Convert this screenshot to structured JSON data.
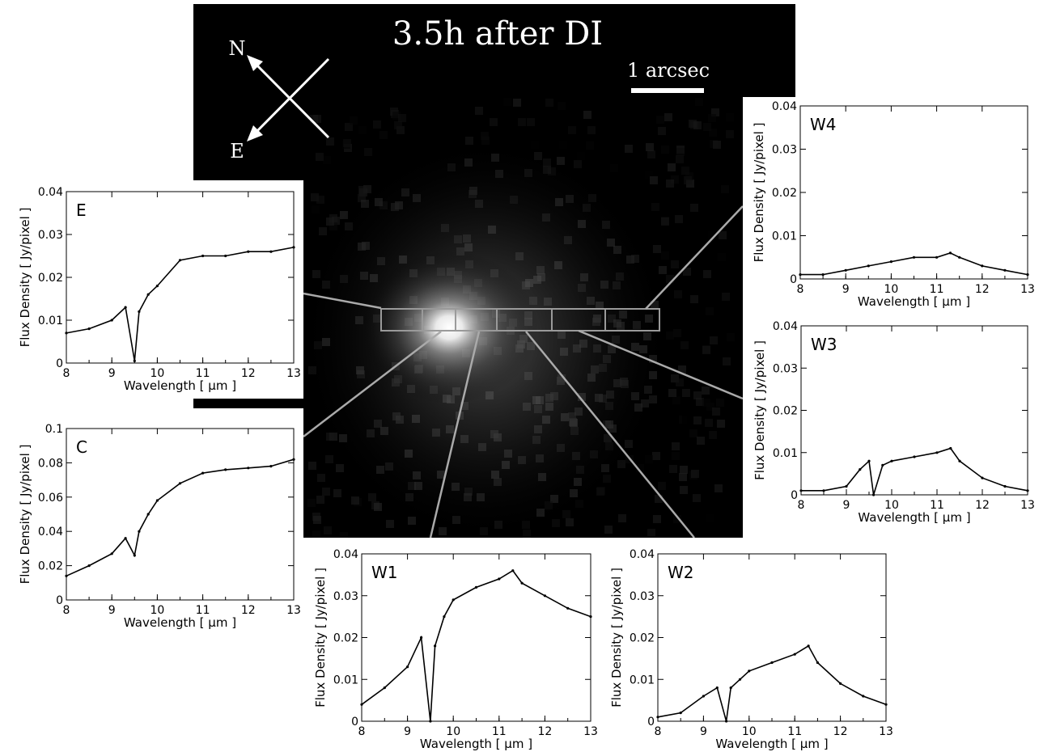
{
  "image": {
    "title": "3.5h after DI",
    "compass": {
      "north": "N",
      "east": "E"
    },
    "scale_bar": "1 arcsec",
    "slit_apertures": [
      "E",
      "C",
      "W1",
      "W2",
      "W3",
      "W4"
    ]
  },
  "common_axes": {
    "xlabel": "Wavelength  [ μm ]",
    "ylabel": "Flux Density  [ Jy/pixel ]"
  },
  "chart_data": [
    {
      "type": "line",
      "panel": "E",
      "xlabel": "Wavelength  [ μm ]",
      "ylabel": "Flux Density  [ Jy/pixel ]",
      "xlim": [
        8,
        13
      ],
      "ylim": [
        0,
        0.04
      ],
      "xticks": [
        "8",
        "9",
        "10",
        "11",
        "12",
        "13"
      ],
      "yticks": [
        "0",
        "0.01",
        "0.02",
        "0.03",
        "0.04"
      ],
      "x": [
        8.0,
        8.5,
        9.0,
        9.3,
        9.5,
        9.6,
        9.8,
        10.0,
        10.5,
        11.0,
        11.5,
        12.0,
        12.5,
        13.0
      ],
      "y": [
        0.007,
        0.008,
        0.01,
        0.013,
        0.0005,
        0.012,
        0.016,
        0.018,
        0.024,
        0.025,
        0.025,
        0.026,
        0.026,
        0.027
      ]
    },
    {
      "type": "line",
      "panel": "C",
      "xlabel": "Wavelength  [ μm ]",
      "ylabel": "Flux Density  [ Jy/pixel ]",
      "xlim": [
        8,
        13
      ],
      "ylim": [
        0,
        0.1
      ],
      "xticks": [
        "8",
        "9",
        "10",
        "11",
        "12",
        "13"
      ],
      "yticks": [
        "0",
        "0.02",
        "0.04",
        "0.06",
        "0.08",
        "0.1"
      ],
      "x": [
        8.0,
        8.5,
        9.0,
        9.3,
        9.5,
        9.6,
        9.8,
        10.0,
        10.5,
        11.0,
        11.5,
        12.0,
        12.5,
        13.0
      ],
      "y": [
        0.014,
        0.02,
        0.027,
        0.036,
        0.026,
        0.04,
        0.05,
        0.058,
        0.068,
        0.074,
        0.076,
        0.077,
        0.078,
        0.082
      ]
    },
    {
      "type": "line",
      "panel": "W1",
      "xlabel": "Wavelength  [ μm ]",
      "ylabel": "Flux Density  [ Jy/pixel ]",
      "xlim": [
        8,
        13
      ],
      "ylim": [
        0,
        0.04
      ],
      "xticks": [
        "8",
        "9",
        "10",
        "11",
        "12",
        "13"
      ],
      "yticks": [
        "0",
        "0.01",
        "0.02",
        "0.03",
        "0.04"
      ],
      "x": [
        8.0,
        8.5,
        9.0,
        9.3,
        9.5,
        9.6,
        9.8,
        10.0,
        10.5,
        11.0,
        11.3,
        11.5,
        12.0,
        12.5,
        13.0
      ],
      "y": [
        0.004,
        0.008,
        0.013,
        0.02,
        0.0,
        0.018,
        0.025,
        0.029,
        0.032,
        0.034,
        0.036,
        0.033,
        0.03,
        0.027,
        0.025
      ]
    },
    {
      "type": "line",
      "panel": "W2",
      "xlabel": "Wavelength  [ μm ]",
      "ylabel": "Flux Density  [ Jy/pixel ]",
      "xlim": [
        8,
        13
      ],
      "ylim": [
        0,
        0.04
      ],
      "xticks": [
        "8",
        "9",
        "10",
        "11",
        "12",
        "13"
      ],
      "yticks": [
        "0",
        "0.01",
        "0.02",
        "0.03",
        "0.04"
      ],
      "x": [
        8.0,
        8.5,
        9.0,
        9.3,
        9.5,
        9.6,
        9.8,
        10.0,
        10.5,
        11.0,
        11.3,
        11.5,
        12.0,
        12.5,
        13.0
      ],
      "y": [
        0.001,
        0.002,
        0.006,
        0.008,
        0.0,
        0.008,
        0.01,
        0.012,
        0.014,
        0.016,
        0.018,
        0.014,
        0.009,
        0.006,
        0.004
      ]
    },
    {
      "type": "line",
      "panel": "W3",
      "xlabel": "Wavelength  [ μm ]",
      "ylabel": "Flux Density  [ Jy/pixel ]",
      "xlim": [
        8,
        13
      ],
      "ylim": [
        0,
        0.04
      ],
      "xticks": [
        "8",
        "9",
        "10",
        "11",
        "12",
        "13"
      ],
      "yticks": [
        "0",
        "0.01",
        "0.02",
        "0.03",
        "0.04"
      ],
      "x": [
        8.0,
        8.5,
        9.0,
        9.3,
        9.5,
        9.6,
        9.8,
        10.0,
        10.5,
        11.0,
        11.3,
        11.5,
        12.0,
        12.5,
        13.0
      ],
      "y": [
        0.001,
        0.001,
        0.002,
        0.006,
        0.008,
        0.0,
        0.007,
        0.008,
        0.009,
        0.01,
        0.011,
        0.008,
        0.004,
        0.002,
        0.001
      ]
    },
    {
      "type": "line",
      "panel": "W4",
      "xlabel": "Wavelength  [ μm ]",
      "ylabel": "Flux Density  [ Jy/pixel ]",
      "xlim": [
        8,
        13
      ],
      "ylim": [
        0,
        0.04
      ],
      "xticks": [
        "8",
        "9",
        "10",
        "11",
        "12",
        "13"
      ],
      "yticks": [
        "0",
        "0.01",
        "0.02",
        "0.03",
        "0.04"
      ],
      "x": [
        8.0,
        8.5,
        9.0,
        9.5,
        10.0,
        10.5,
        11.0,
        11.3,
        11.5,
        12.0,
        12.5,
        13.0
      ],
      "y": [
        0.001,
        0.001,
        0.002,
        0.003,
        0.004,
        0.005,
        0.005,
        0.006,
        0.005,
        0.003,
        0.002,
        0.001
      ]
    }
  ]
}
